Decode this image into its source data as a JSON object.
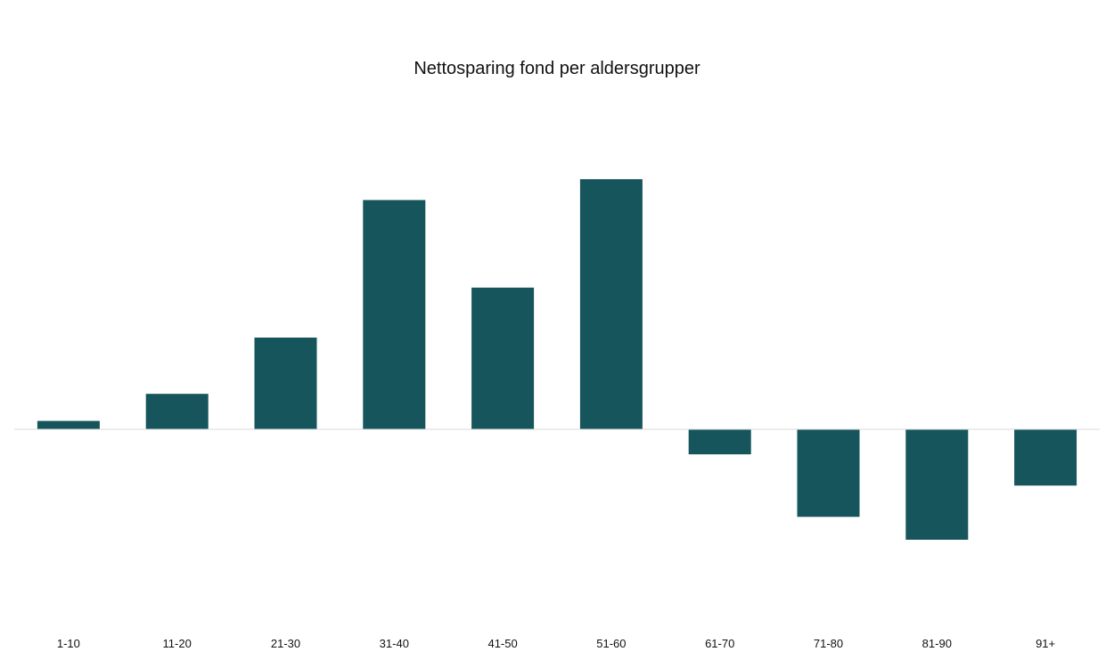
{
  "chart_data": {
    "type": "bar",
    "title": "Nettosparing fond per aldersgrupper",
    "xlabel": "",
    "ylabel": "",
    "categories": [
      "1-10",
      "11-20",
      "21-30",
      "31-40",
      "41-50",
      "51-60",
      "61-70",
      "71-80",
      "81-90",
      "91+"
    ],
    "values": [
      4,
      17,
      44,
      110,
      68,
      120,
      -12,
      -42,
      -53,
      -27
    ],
    "ylim": [
      -85,
      125
    ],
    "grid": false,
    "y_tick_labels_shown": false,
    "colors": {
      "bar": "#15555b",
      "baseline": "#d9d9d9"
    }
  }
}
